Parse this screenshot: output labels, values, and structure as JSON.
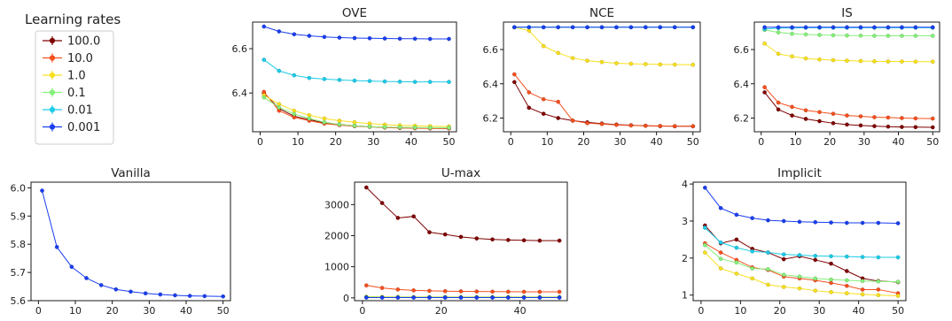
{
  "colors": {
    "100.0": "#7f0000",
    "10.0": "#f5501e",
    "1.0": "#f8e01c",
    "0.1": "#86f07a",
    "0.01": "#1ccce8",
    "0.001": "#1a3ef0"
  },
  "legend": {
    "title": "Learning rates",
    "entries": [
      "100.0",
      "10.0",
      "1.0",
      "0.1",
      "0.01",
      "0.001"
    ]
  },
  "chart_data": [
    {
      "type": "line",
      "title": "OVE",
      "x": [
        1,
        5,
        9,
        13,
        17,
        21,
        25,
        29,
        33,
        37,
        41,
        45,
        50
      ],
      "xlim": [
        -2,
        52
      ],
      "ylim": [
        6.225,
        6.72
      ],
      "xticks": [
        0,
        10,
        20,
        30,
        40,
        50
      ],
      "yticks": [
        6.4,
        6.6
      ],
      "series": [
        {
          "name": "100.0",
          "values": [
            6.4,
            6.33,
            6.295,
            6.28,
            6.265,
            6.258,
            6.252,
            6.248,
            6.245,
            6.243,
            6.242,
            6.241,
            6.24
          ]
        },
        {
          "name": "10.0",
          "values": [
            6.405,
            6.32,
            6.29,
            6.275,
            6.262,
            6.255,
            6.25,
            6.247,
            6.244,
            6.242,
            6.241,
            6.24,
            6.24
          ]
        },
        {
          "name": "1.0",
          "values": [
            6.39,
            6.35,
            6.32,
            6.3,
            6.285,
            6.275,
            6.268,
            6.262,
            6.257,
            6.254,
            6.252,
            6.25,
            6.249
          ]
        },
        {
          "name": "0.1",
          "values": [
            6.38,
            6.335,
            6.305,
            6.285,
            6.268,
            6.258,
            6.252,
            6.248,
            6.246,
            6.245,
            6.244,
            6.243,
            6.243
          ]
        },
        {
          "name": "0.01",
          "values": [
            6.55,
            6.5,
            6.48,
            6.468,
            6.463,
            6.459,
            6.456,
            6.454,
            6.452,
            6.451,
            6.45,
            6.45,
            6.45
          ]
        },
        {
          "name": "0.001",
          "values": [
            6.7,
            6.678,
            6.665,
            6.658,
            6.653,
            6.65,
            6.648,
            6.647,
            6.646,
            6.645,
            6.645,
            6.644,
            6.644
          ]
        }
      ]
    },
    {
      "type": "line",
      "title": "NCE",
      "x": [
        1,
        5,
        9,
        13,
        17,
        21,
        25,
        29,
        33,
        37,
        41,
        45,
        50
      ],
      "xlim": [
        -2,
        52
      ],
      "ylim": [
        6.12,
        6.76
      ],
      "xticks": [
        0,
        10,
        20,
        30,
        40,
        50
      ],
      "yticks": [
        6.2,
        6.4,
        6.6
      ],
      "series": [
        {
          "name": "100.0",
          "values": [
            6.41,
            6.26,
            6.225,
            6.2,
            6.185,
            6.175,
            6.168,
            6.162,
            6.158,
            6.155,
            6.153,
            6.152,
            6.152
          ]
        },
        {
          "name": "10.0",
          "values": [
            6.455,
            6.35,
            6.31,
            6.295,
            6.185,
            6.17,
            6.165,
            6.16,
            6.157,
            6.155,
            6.154,
            6.153,
            6.152
          ]
        },
        {
          "name": "1.0",
          "values": [
            6.73,
            6.71,
            6.62,
            6.58,
            6.55,
            6.535,
            6.527,
            6.52,
            6.517,
            6.515,
            6.513,
            6.512,
            6.511
          ]
        },
        {
          "name": "0.1",
          "values": [
            6.73,
            6.73,
            6.73,
            6.73,
            6.73,
            6.73,
            6.73,
            6.73,
            6.73,
            6.73,
            6.73,
            6.73,
            6.73
          ]
        },
        {
          "name": "0.01",
          "values": [
            6.73,
            6.73,
            6.73,
            6.73,
            6.73,
            6.73,
            6.73,
            6.73,
            6.73,
            6.73,
            6.73,
            6.73,
            6.73
          ]
        },
        {
          "name": "0.001",
          "values": [
            6.73,
            6.73,
            6.73,
            6.73,
            6.73,
            6.73,
            6.73,
            6.73,
            6.73,
            6.73,
            6.73,
            6.73,
            6.73
          ]
        }
      ]
    },
    {
      "type": "line",
      "title": "IS",
      "x": [
        1,
        5,
        9,
        13,
        17,
        21,
        25,
        29,
        33,
        37,
        41,
        45,
        50
      ],
      "xlim": [
        -2,
        52
      ],
      "ylim": [
        6.12,
        6.76
      ],
      "xticks": [
        0,
        10,
        20,
        30,
        40,
        50
      ],
      "yticks": [
        6.2,
        6.4,
        6.6
      ],
      "series": [
        {
          "name": "100.0",
          "values": [
            6.35,
            6.25,
            6.215,
            6.195,
            6.182,
            6.17,
            6.162,
            6.157,
            6.153,
            6.15,
            6.148,
            6.147,
            6.146
          ]
        },
        {
          "name": "10.0",
          "values": [
            6.38,
            6.29,
            6.265,
            6.245,
            6.235,
            6.225,
            6.215,
            6.21,
            6.205,
            6.203,
            6.2,
            6.198,
            6.197
          ]
        },
        {
          "name": "1.0",
          "values": [
            6.635,
            6.575,
            6.56,
            6.548,
            6.542,
            6.538,
            6.535,
            6.533,
            6.531,
            6.53,
            6.53,
            6.529,
            6.529
          ]
        },
        {
          "name": "0.1",
          "values": [
            6.715,
            6.7,
            6.692,
            6.688,
            6.685,
            6.683,
            6.682,
            6.681,
            6.68,
            6.68,
            6.68,
            6.68,
            6.68
          ]
        },
        {
          "name": "0.01",
          "values": [
            6.72,
            6.725,
            6.726,
            6.727,
            6.727,
            6.727,
            6.727,
            6.727,
            6.727,
            6.727,
            6.727,
            6.727,
            6.727
          ]
        },
        {
          "name": "0.001",
          "values": [
            6.73,
            6.73,
            6.73,
            6.73,
            6.73,
            6.73,
            6.73,
            6.73,
            6.73,
            6.73,
            6.73,
            6.73,
            6.73
          ]
        }
      ]
    },
    {
      "type": "line",
      "title": "Vanilla",
      "x": [
        1,
        5,
        9,
        13,
        17,
        21,
        25,
        29,
        33,
        37,
        41,
        45,
        50
      ],
      "xlim": [
        -2,
        52
      ],
      "ylim": [
        5.6,
        6.02
      ],
      "xticks": [
        0,
        10,
        20,
        30,
        40,
        50
      ],
      "yticks": [
        5.6,
        5.7,
        5.8,
        5.9,
        6.0
      ],
      "series": [
        {
          "name": "0.001",
          "values": [
            5.99,
            5.79,
            5.72,
            5.68,
            5.655,
            5.64,
            5.632,
            5.626,
            5.622,
            5.619,
            5.617,
            5.616,
            5.615
          ]
        }
      ]
    },
    {
      "type": "line",
      "title": "U-max",
      "x": [
        1,
        5,
        9,
        13,
        17,
        21,
        25,
        29,
        33,
        37,
        41,
        45,
        50
      ],
      "xlim": [
        -2,
        52
      ],
      "ylim": [
        -90,
        3720
      ],
      "xticks": [
        0,
        20,
        40
      ],
      "yticks": [
        0,
        1000,
        2000,
        3000
      ],
      "series": [
        {
          "name": "100.0",
          "values": [
            3550,
            3050,
            2570,
            2620,
            2110,
            2040,
            1960,
            1910,
            1880,
            1860,
            1850,
            1840,
            1840
          ]
        },
        {
          "name": "10.0",
          "values": [
            400,
            320,
            270,
            240,
            225,
            215,
            210,
            205,
            200,
            198,
            196,
            195,
            195
          ]
        },
        {
          "name": "1.0",
          "values": [
            40,
            35,
            32,
            30,
            30,
            30,
            30,
            30,
            30,
            30,
            30,
            30,
            30
          ]
        },
        {
          "name": "0.1",
          "values": [
            20,
            18,
            16,
            15,
            15,
            15,
            15,
            15,
            15,
            15,
            15,
            15,
            15
          ]
        },
        {
          "name": "0.01",
          "values": [
            15,
            14,
            13,
            13,
            13,
            13,
            13,
            13,
            13,
            13,
            13,
            13,
            13
          ]
        },
        {
          "name": "0.001",
          "values": [
            10,
            10,
            10,
            10,
            10,
            10,
            10,
            10,
            10,
            10,
            10,
            10,
            10
          ]
        }
      ]
    },
    {
      "type": "line",
      "title": "Implicit",
      "x": [
        1,
        5,
        9,
        13,
        17,
        21,
        25,
        29,
        33,
        37,
        41,
        45,
        50
      ],
      "xlim": [
        -2,
        52
      ],
      "ylim": [
        0.85,
        4.05
      ],
      "xticks": [
        0,
        10,
        20,
        30,
        40,
        50
      ],
      "yticks": [
        1,
        2,
        3,
        4
      ],
      "series": [
        {
          "name": "100.0",
          "values": [
            2.88,
            2.4,
            2.5,
            2.25,
            2.15,
            1.97,
            2.05,
            1.95,
            1.85,
            1.65,
            1.45,
            1.38,
            1.35
          ]
        },
        {
          "name": "10.0",
          "values": [
            2.4,
            2.15,
            1.95,
            1.75,
            1.68,
            1.5,
            1.45,
            1.4,
            1.33,
            1.25,
            1.15,
            1.15,
            1.05
          ]
        },
        {
          "name": "1.0",
          "values": [
            2.15,
            1.72,
            1.58,
            1.45,
            1.28,
            1.22,
            1.18,
            1.12,
            1.08,
            1.05,
            1.02,
            1.0,
            0.98
          ]
        },
        {
          "name": "0.1",
          "values": [
            2.35,
            1.98,
            1.88,
            1.72,
            1.7,
            1.55,
            1.5,
            1.45,
            1.42,
            1.4,
            1.38,
            1.37,
            1.36
          ]
        },
        {
          "name": "0.01",
          "values": [
            2.82,
            2.42,
            2.28,
            2.18,
            2.15,
            2.1,
            2.08,
            2.06,
            2.05,
            2.04,
            2.03,
            2.02,
            2.02
          ]
        },
        {
          "name": "0.001",
          "values": [
            3.9,
            3.35,
            3.17,
            3.08,
            3.02,
            3.0,
            2.98,
            2.97,
            2.96,
            2.95,
            2.95,
            2.95,
            2.94
          ]
        }
      ]
    }
  ]
}
